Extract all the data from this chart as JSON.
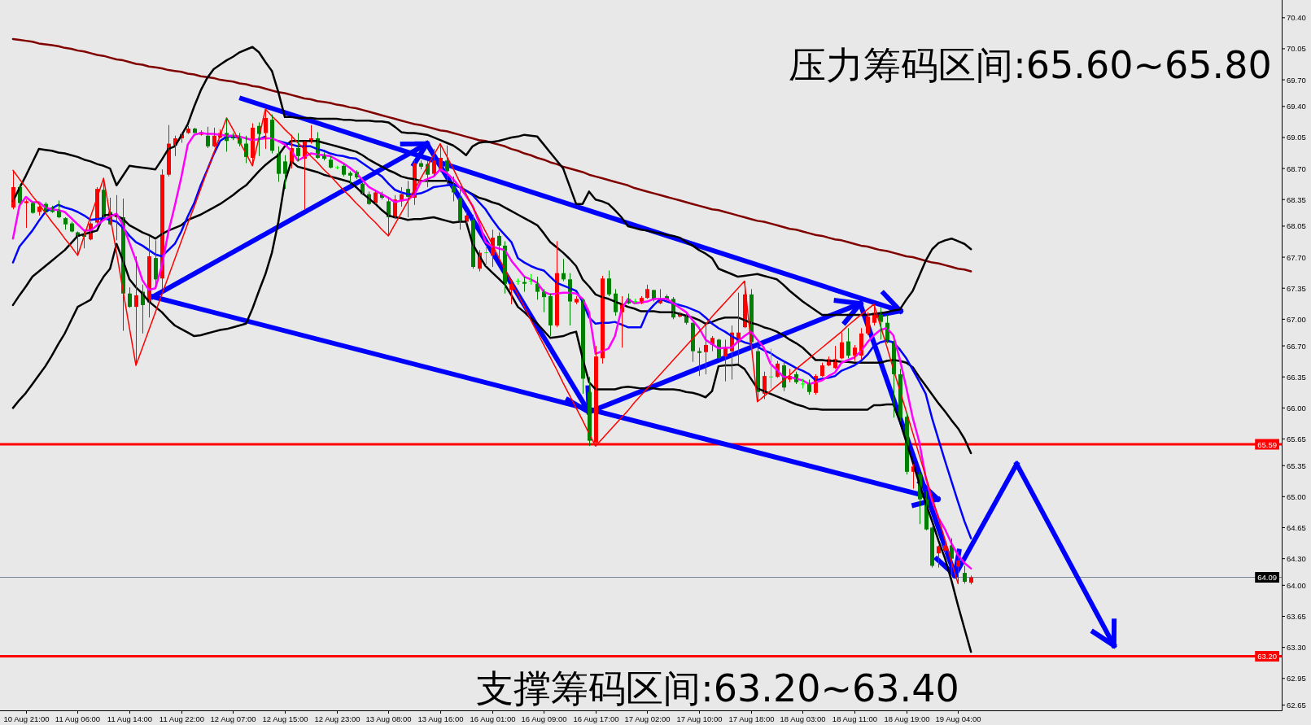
{
  "chart_data": {
    "type": "candlestick",
    "categories": [
      null,
      null,
      "10 Aug 21:00",
      null,
      null,
      null,
      null,
      null,
      null,
      null,
      "11 Aug 06:00",
      null,
      null,
      null,
      null,
      null,
      null,
      null,
      "11 Aug 14:00",
      null,
      null,
      null,
      null,
      null,
      null,
      null,
      "11 Aug 22:00",
      null,
      null,
      null,
      null,
      null,
      null,
      null,
      "12 Aug 07:00",
      null,
      null,
      null,
      null,
      null,
      null,
      null,
      "12 Aug 15:00",
      null,
      null,
      null,
      null,
      null,
      null,
      null,
      "12 Aug 23:00",
      null,
      null,
      null,
      null,
      null,
      null,
      null,
      "13 Aug 08:00",
      null,
      null,
      null,
      null,
      null,
      null,
      null,
      "13 Aug 16:00",
      null,
      null,
      null,
      null,
      null,
      null,
      null,
      "16 Aug 01:00",
      null,
      null,
      null,
      null,
      null,
      null,
      null,
      "16 Aug 09:00",
      null,
      null,
      null,
      null,
      null,
      null,
      null,
      "16 Aug 17:00",
      null,
      null,
      null,
      null,
      null,
      null,
      null,
      "17 Aug 02:00",
      null,
      null,
      null,
      null,
      null,
      null,
      null,
      "17 Aug 10:00",
      null,
      null,
      null,
      null,
      null,
      null,
      null,
      "17 Aug 18:00",
      null,
      null,
      null,
      null,
      null,
      null,
      null,
      "18 Aug 03:00",
      null,
      null,
      null,
      null,
      null,
      null,
      null,
      "18 Aug 11:00",
      null,
      null,
      null,
      null,
      null,
      null,
      null,
      "18 Aug 19:00",
      null,
      null,
      null,
      null,
      null,
      null,
      null,
      "19 Aug 04:00",
      null,
      null
    ],
    "ohlc": [
      [
        68.26,
        68.68,
        68.24,
        68.49
      ],
      [
        68.49,
        68.52,
        68.3,
        68.31
      ],
      [
        68.31,
        68.35,
        68.03,
        68.33
      ],
      [
        68.31,
        68.32,
        68.19,
        68.2
      ],
      [
        68.21,
        68.28,
        68.17,
        68.27
      ],
      [
        68.3,
        68.32,
        68.2,
        68.21
      ],
      [
        68.26,
        68.28,
        68.2,
        68.21
      ],
      [
        68.23,
        68.34,
        68.14,
        68.15
      ],
      [
        68.14,
        68.15,
        68.01,
        68.07
      ],
      [
        68.08,
        68.1,
        67.98,
        67.99
      ],
      [
        67.98,
        67.99,
        67.72,
        67.93
      ],
      [
        67.95,
        68.0,
        67.8,
        67.93
      ],
      [
        67.9,
        68.1,
        67.89,
        68.08
      ],
      [
        68.09,
        68.49,
        68.08,
        68.47
      ],
      [
        68.46,
        68.59,
        68.14,
        68.15
      ],
      [
        68.21,
        68.37,
        68.06,
        68.07
      ],
      [
        68.15,
        68.4,
        67.89,
        68.16
      ],
      [
        68.15,
        68.36,
        66.87,
        67.29
      ],
      [
        67.29,
        67.36,
        67.13,
        67.14
      ],
      [
        67.14,
        67.71,
        66.48,
        67.27
      ],
      [
        67.31,
        67.39,
        66.84,
        67.16
      ],
      [
        67.19,
        67.94,
        67.02,
        67.71
      ],
      [
        67.69,
        67.89,
        67.36,
        67.45
      ],
      [
        67.46,
        68.69,
        67.34,
        68.63
      ],
      [
        68.63,
        69.19,
        68.61,
        68.98
      ],
      [
        68.96,
        69.07,
        68.84,
        69.04
      ],
      [
        69.04,
        69.11,
        68.99,
        69.09
      ],
      [
        69.1,
        69.18,
        69.09,
        69.15
      ],
      [
        69.15,
        69.16,
        69.1,
        69.1
      ],
      [
        69.08,
        69.13,
        69.07,
        69.11
      ],
      [
        69.07,
        69.17,
        68.93,
        68.95
      ],
      [
        68.95,
        69.16,
        68.94,
        69.07
      ],
      [
        69.05,
        69.14,
        69.04,
        69.1
      ],
      [
        69.1,
        69.27,
        68.89,
        69.01
      ],
      [
        69.07,
        69.1,
        69.02,
        69.04
      ],
      [
        69.04,
        69.1,
        68.95,
        68.98
      ],
      [
        68.98,
        69.07,
        68.76,
        68.83
      ],
      [
        68.82,
        69.21,
        68.73,
        69.16
      ],
      [
        69.18,
        69.22,
        68.84,
        69.09
      ],
      [
        69.1,
        69.37,
        68.92,
        69.27
      ],
      [
        69.25,
        69.31,
        68.87,
        68.9
      ],
      [
        68.87,
        68.95,
        68.55,
        68.64
      ],
      [
        68.78,
        68.85,
        68.47,
        68.64
      ],
      [
        68.77,
        69.08,
        68.7,
        68.93
      ],
      [
        68.93,
        69.1,
        68.78,
        68.84
      ],
      [
        68.81,
        69.01,
        68.24,
        69.0
      ],
      [
        69.0,
        69.19,
        68.98,
        69.04
      ],
      [
        69.04,
        69.11,
        68.81,
        68.82
      ],
      [
        68.85,
        68.88,
        68.79,
        68.81
      ],
      [
        68.8,
        68.84,
        68.7,
        68.71
      ],
      [
        68.71,
        68.73,
        68.69,
        68.71
      ],
      [
        68.73,
        68.75,
        68.61,
        68.63
      ],
      [
        68.65,
        68.67,
        68.53,
        68.62
      ],
      [
        68.66,
        68.68,
        68.58,
        68.6
      ],
      [
        68.53,
        68.56,
        68.4,
        68.41
      ],
      [
        68.41,
        68.44,
        68.29,
        68.3
      ],
      [
        68.31,
        68.46,
        68.3,
        68.43
      ],
      [
        68.41,
        68.44,
        68.35,
        68.37
      ],
      [
        68.33,
        68.38,
        67.94,
        68.15
      ],
      [
        68.14,
        68.4,
        68.13,
        68.35
      ],
      [
        68.33,
        68.49,
        68.27,
        68.41
      ],
      [
        68.47,
        68.56,
        68.15,
        68.38
      ],
      [
        68.37,
        68.79,
        68.29,
        68.76
      ],
      [
        68.76,
        68.79,
        68.69,
        68.72
      ],
      [
        68.75,
        68.79,
        68.49,
        68.63
      ],
      [
        68.64,
        68.92,
        68.61,
        68.79
      ],
      [
        68.67,
        68.98,
        68.66,
        68.82
      ],
      [
        68.79,
        68.96,
        68.52,
        68.67
      ],
      [
        68.52,
        68.61,
        68.33,
        68.43
      ],
      [
        68.37,
        68.46,
        68.01,
        68.11
      ],
      [
        68.1,
        68.21,
        68.08,
        68.17
      ],
      [
        68.12,
        68.18,
        67.57,
        67.59
      ],
      [
        67.57,
        67.78,
        67.54,
        67.75
      ],
      [
        67.75,
        67.83,
        67.6,
        67.75
      ],
      [
        67.72,
        68.01,
        67.59,
        67.92
      ],
      [
        67.94,
        67.98,
        67.69,
        67.83
      ],
      [
        67.83,
        67.88,
        67.29,
        67.4
      ],
      [
        67.33,
        67.45,
        67.17,
        67.4
      ],
      [
        67.43,
        67.46,
        67.39,
        67.43
      ],
      [
        67.42,
        67.48,
        67.31,
        67.4
      ],
      [
        67.43,
        67.51,
        67.39,
        67.43
      ],
      [
        67.4,
        67.48,
        67.22,
        67.31
      ],
      [
        67.31,
        67.34,
        67.08,
        67.25
      ],
      [
        67.26,
        67.29,
        66.81,
        66.93
      ],
      [
        66.93,
        67.88,
        66.91,
        67.52
      ],
      [
        67.52,
        67.68,
        67.43,
        67.45
      ],
      [
        67.45,
        67.52,
        66.93,
        67.2
      ],
      [
        67.19,
        67.26,
        67.17,
        67.23
      ],
      [
        67.22,
        67.23,
        66.16,
        66.33
      ],
      [
        66.18,
        66.35,
        65.57,
        65.63
      ],
      [
        65.61,
        66.7,
        65.57,
        66.58
      ],
      [
        66.56,
        67.49,
        66.5,
        67.46
      ],
      [
        67.46,
        67.55,
        67.26,
        67.28
      ],
      [
        67.29,
        67.34,
        67.04,
        67.08
      ],
      [
        67.08,
        67.26,
        66.68,
        67.17
      ],
      [
        67.23,
        67.29,
        67.17,
        67.18
      ],
      [
        67.2,
        67.23,
        67.18,
        67.2
      ],
      [
        67.18,
        67.26,
        67.17,
        67.24
      ],
      [
        67.24,
        67.39,
        67.23,
        67.34
      ],
      [
        67.33,
        67.33,
        67.2,
        67.22
      ],
      [
        67.18,
        67.34,
        67.17,
        67.23
      ],
      [
        67.26,
        67.28,
        67.19,
        67.23
      ],
      [
        67.23,
        67.25,
        67.0,
        67.02
      ],
      [
        67.03,
        67.08,
        67.02,
        67.07
      ],
      [
        67.03,
        67.06,
        66.94,
        66.96
      ],
      [
        66.96,
        66.96,
        66.52,
        66.64
      ],
      [
        66.64,
        66.68,
        66.36,
        66.62
      ],
      [
        66.63,
        66.96,
        66.38,
        66.71
      ],
      [
        66.71,
        66.81,
        66.64,
        66.79
      ],
      [
        66.77,
        66.78,
        66.55,
        66.56
      ],
      [
        66.58,
        66.77,
        66.3,
        66.68
      ],
      [
        66.64,
        66.93,
        66.32,
        66.85
      ],
      [
        66.74,
        67.3,
        66.5,
        66.85
      ],
      [
        66.91,
        67.43,
        66.9,
        67.28
      ],
      [
        67.28,
        67.34,
        66.71,
        66.74
      ],
      [
        66.64,
        66.71,
        66.07,
        66.18
      ],
      [
        66.16,
        66.41,
        66.1,
        66.36
      ],
      [
        66.35,
        66.67,
        66.22,
        66.35
      ],
      [
        66.35,
        66.53,
        66.34,
        66.5
      ],
      [
        66.48,
        66.53,
        66.19,
        66.23
      ],
      [
        66.32,
        66.44,
        66.29,
        66.36
      ],
      [
        66.38,
        66.41,
        66.27,
        66.29
      ],
      [
        66.27,
        66.33,
        66.22,
        66.27
      ],
      [
        66.27,
        66.32,
        66.15,
        66.18
      ],
      [
        66.17,
        66.38,
        66.15,
        66.36
      ],
      [
        66.36,
        66.51,
        66.35,
        66.48
      ],
      [
        66.48,
        66.58,
        66.47,
        66.55
      ],
      [
        66.45,
        66.7,
        66.44,
        66.55
      ],
      [
        66.56,
        66.85,
        66.55,
        66.74
      ],
      [
        66.75,
        66.9,
        66.56,
        66.59
      ],
      [
        66.59,
        66.71,
        66.53,
        66.68
      ],
      [
        66.59,
        66.9,
        66.55,
        66.84
      ],
      [
        66.84,
        67.08,
        66.82,
        67.03
      ],
      [
        66.96,
        67.17,
        66.93,
        67.07
      ],
      [
        67.05,
        67.13,
        66.77,
        66.97
      ],
      [
        66.96,
        67.05,
        66.73,
        66.74
      ],
      [
        66.74,
        66.76,
        65.89,
        66.38
      ],
      [
        66.38,
        66.44,
        65.85,
        65.89
      ],
      [
        65.9,
        65.95,
        65.25,
        65.28
      ],
      [
        65.28,
        65.37,
        65.09,
        65.34
      ],
      [
        65.25,
        65.28,
        64.69,
        64.97
      ],
      [
        64.97,
        65.06,
        64.62,
        64.63
      ],
      [
        64.65,
        64.66,
        64.2,
        64.22
      ],
      [
        64.36,
        64.45,
        64.2,
        64.44
      ],
      [
        64.39,
        64.48,
        64.36,
        64.45
      ],
      [
        64.45,
        64.53,
        64.11,
        64.3
      ],
      [
        64.21,
        64.39,
        64.02,
        64.28
      ],
      [
        64.14,
        64.22,
        64.02,
        64.04
      ],
      [
        64.03,
        64.11,
        64.01,
        64.09
      ]
    ],
    "colors": [
      "#ff0000",
      "#008000",
      "#ff0000",
      "#008000",
      "#ff0000",
      "#008000",
      "#008000",
      "#008000",
      "#008000",
      "#008000",
      "#008000",
      "#008000",
      "#ff0000",
      "#ff0000",
      "#008000",
      "#008000",
      "#ff0000",
      "#008000",
      "#008000",
      "#ff0000",
      "#008000",
      "#ff0000",
      "#008000",
      "#ff0000",
      "#ff0000",
      "#ff0000",
      "#ff0000",
      "#ff0000",
      "#008000",
      "#ff0000",
      "#008000",
      "#ff0000",
      "#ff0000",
      "#008000",
      "#008000",
      "#008000",
      "#008000",
      "#ff0000",
      "#008000",
      "#ff0000",
      "#008000",
      "#008000",
      "#008000",
      "#ff0000",
      "#008000",
      "#ff0000",
      "#ff0000",
      "#008000",
      "#008000",
      "#008000",
      "#00ff00",
      "#008000",
      "#008000",
      "#008000",
      "#008000",
      "#008000",
      "#ff0000",
      "#008000",
      "#008000",
      "#ff0000",
      "#ff0000",
      "#008000",
      "#ff0000",
      "#008000",
      "#008000",
      "#ff0000",
      "#ff0000",
      "#008000",
      "#008000",
      "#008000",
      "#ff0000",
      "#008000",
      "#ff0000",
      "#00ff00",
      "#ff0000",
      "#008000",
      "#008000",
      "#ff0000",
      "#00ff00",
      "#008000",
      "#00ff00",
      "#008000",
      "#008000",
      "#008000",
      "#ff0000",
      "#008000",
      "#008000",
      "#ff0000",
      "#008000",
      "#008000",
      "#ff0000",
      "#ff0000",
      "#008000",
      "#008000",
      "#ff0000",
      "#008000",
      "#00ff00",
      "#ff0000",
      "#ff0000",
      "#008000",
      "#ff0000",
      "#008000",
      "#008000",
      "#ff0000",
      "#008000",
      "#008000",
      "#008000",
      "#ff0000",
      "#ff0000",
      "#008000",
      "#ff0000",
      "#ff0000",
      "#ff0000",
      "#ff0000",
      "#008000",
      "#008000",
      "#ff0000",
      "#00ff00",
      "#ff0000",
      "#008000",
      "#ff0000",
      "#008000",
      "#00ff00",
      "#008000",
      "#ff0000",
      "#ff0000",
      "#ff0000",
      "#ff0000",
      "#ff0000",
      "#008000",
      "#ff0000",
      "#ff0000",
      "#ff0000",
      "#ff0000",
      "#008000",
      "#008000",
      "#008000",
      "#008000",
      "#008000",
      "#ff0000",
      "#008000",
      "#008000",
      "#008000",
      "#ff0000",
      "#ff0000",
      "#008000",
      "#ff0000",
      "#008000",
      "#ff0000"
    ],
    "series": [
      {
        "type": "line",
        "color": "#800000",
        "values": [
          70.16,
          70.15,
          70.14,
          70.13,
          70.11,
          70.1,
          70.09,
          70.08,
          70.06,
          70.05,
          70.03,
          70.02,
          70.0,
          69.98,
          69.97,
          69.95,
          69.93,
          69.92,
          69.9,
          69.88,
          69.87,
          69.85,
          69.84,
          69.83,
          69.81,
          69.8,
          69.79,
          69.77,
          69.76,
          69.74,
          69.73,
          69.72,
          69.7,
          69.69,
          69.68,
          69.66,
          69.65,
          69.63,
          69.62,
          69.6,
          69.58,
          69.56,
          69.55,
          69.53,
          69.51,
          69.49,
          69.48,
          69.46,
          69.45,
          69.44,
          69.42,
          69.41,
          69.39,
          69.38,
          69.36,
          69.34,
          69.32,
          69.3,
          69.28,
          69.26,
          69.24,
          69.22,
          69.2,
          69.19,
          69.17,
          69.15,
          69.13,
          69.12,
          69.1,
          69.08,
          69.06,
          69.04,
          69.02,
          69.01,
          68.99,
          68.97,
          68.95,
          68.92,
          68.9,
          68.87,
          68.85,
          68.82,
          68.8,
          68.77,
          68.75,
          68.72,
          68.7,
          68.68,
          68.66,
          68.63,
          68.61,
          68.59,
          68.57,
          68.55,
          68.53,
          68.51,
          68.48,
          68.46,
          68.44,
          68.42,
          68.4,
          68.38,
          68.36,
          68.34,
          68.32,
          68.3,
          68.28,
          68.26,
          68.24,
          68.23,
          68.21,
          68.19,
          68.17,
          68.15,
          68.13,
          68.11,
          68.1,
          68.08,
          68.06,
          68.04,
          68.02,
          68.01,
          67.99,
          67.97,
          67.95,
          67.94,
          67.92,
          67.9,
          67.89,
          67.87,
          67.85,
          67.83,
          67.82,
          67.8,
          67.78,
          67.77,
          67.75,
          67.73,
          67.71,
          67.7,
          67.68,
          67.66,
          67.64,
          67.63,
          67.61,
          67.59,
          67.57,
          67.56,
          67.54
        ]
      },
      {
        "type": "line",
        "color": "#000000",
        "values": [
          68.33,
          68.48,
          68.62,
          68.77,
          68.92,
          68.91,
          68.9,
          68.88,
          68.87,
          68.85,
          68.83,
          68.8,
          68.78,
          68.75,
          68.73,
          68.7,
          68.51,
          68.62,
          68.73,
          68.72,
          68.71,
          68.7,
          68.69,
          68.8,
          68.92,
          68.95,
          69.07,
          69.2,
          69.4,
          69.58,
          69.72,
          69.82,
          69.87,
          69.92,
          69.96,
          70.01,
          70.04,
          70.07,
          70.01,
          69.9,
          69.8,
          69.56,
          69.28,
          69.28,
          69.27,
          69.27,
          69.27,
          69.26,
          69.26,
          69.26,
          69.26,
          69.25,
          69.25,
          69.24,
          69.24,
          69.24,
          69.23,
          69.23,
          69.22,
          69.17,
          69.11,
          69.1,
          69.1,
          69.09,
          69.08,
          69.05,
          69.02,
          68.99,
          68.96,
          68.91,
          68.85,
          68.95,
          68.99,
          69.0,
          69.0,
          69.01,
          69.03,
          69.05,
          69.06,
          69.08,
          69.07,
          69.06,
          68.97,
          68.88,
          68.79,
          68.7,
          68.5,
          68.3,
          68.3,
          68.44,
          68.35,
          68.33,
          68.3,
          68.23,
          68.15,
          68.05,
          68.03,
          68.01,
          68.0,
          67.98,
          67.97,
          67.95,
          67.94,
          67.92,
          67.87,
          67.83,
          67.78,
          67.74,
          67.69,
          67.57,
          67.54,
          67.51,
          67.48,
          67.49,
          67.5,
          67.51,
          67.49,
          67.47,
          67.45,
          67.39,
          67.32,
          67.26,
          67.2,
          67.15,
          67.1,
          67.05,
          67.05,
          67.05,
          67.05,
          67.05,
          67.05,
          67.05,
          67.05,
          67.06,
          67.07,
          67.08,
          67.1,
          67.11,
          67.22,
          67.32,
          67.49,
          67.66,
          67.79,
          67.86,
          67.89,
          67.91,
          67.88,
          67.85,
          67.79
        ]
      },
      {
        "type": "line",
        "color": "#000000",
        "values": [
          67.16,
          67.27,
          67.37,
          67.48,
          67.54,
          67.6,
          67.66,
          67.72,
          67.78,
          67.86,
          67.94,
          67.96,
          67.98,
          68.0,
          68.17,
          68.18,
          68.17,
          68.13,
          68.06,
          68.02,
          67.98,
          67.95,
          67.91,
          67.96,
          68.0,
          68.03,
          68.06,
          68.12,
          68.15,
          68.18,
          68.22,
          68.26,
          68.3,
          68.35,
          68.4,
          68.46,
          68.51,
          68.59,
          68.67,
          68.74,
          68.8,
          68.85,
          68.95,
          69.01,
          69.01,
          69.01,
          69.01,
          69.01,
          68.99,
          68.97,
          68.95,
          68.93,
          68.91,
          68.89,
          68.85,
          68.8,
          68.76,
          68.72,
          68.68,
          68.65,
          68.61,
          68.59,
          68.58,
          68.56,
          68.56,
          68.56,
          68.56,
          68.56,
          68.53,
          68.49,
          68.45,
          68.41,
          68.37,
          68.35,
          68.32,
          68.3,
          68.26,
          68.22,
          68.18,
          68.14,
          68.1,
          68.06,
          67.97,
          67.87,
          67.81,
          67.75,
          67.68,
          67.6,
          67.45,
          67.37,
          67.28,
          67.25,
          67.23,
          67.2,
          67.17,
          67.14,
          67.12,
          67.09,
          67.09,
          67.09,
          67.08,
          67.08,
          67.08,
          67.06,
          67.04,
          67.02,
          66.99,
          66.95,
          66.97,
          67.0,
          67.02,
          67.02,
          67.02,
          66.99,
          66.96,
          66.94,
          66.91,
          66.89,
          66.86,
          66.82,
          66.77,
          66.73,
          66.68,
          66.61,
          66.54,
          66.54,
          66.53,
          66.53,
          66.52,
          66.52,
          66.51,
          66.51,
          66.51,
          66.51,
          66.51,
          66.53,
          66.54,
          66.53,
          66.51,
          66.46,
          66.35,
          66.25,
          66.15,
          66.05,
          65.96,
          65.86,
          65.77,
          65.65,
          65.49
        ]
      },
      {
        "type": "line",
        "color": "#000000",
        "values": [
          66.0,
          66.09,
          66.17,
          66.27,
          66.37,
          66.47,
          66.59,
          66.72,
          66.84,
          66.99,
          67.14,
          67.18,
          67.22,
          67.36,
          67.48,
          67.57,
          67.85,
          67.66,
          67.45,
          67.36,
          67.29,
          67.2,
          67.14,
          67.08,
          67.0,
          66.93,
          66.89,
          66.85,
          66.81,
          66.82,
          66.84,
          66.86,
          66.88,
          66.89,
          66.91,
          66.93,
          66.95,
          67.12,
          67.32,
          67.51,
          67.75,
          68.1,
          68.55,
          68.78,
          68.72,
          68.7,
          68.68,
          68.66,
          68.63,
          68.61,
          68.59,
          68.57,
          68.55,
          68.49,
          68.42,
          68.36,
          68.3,
          68.23,
          68.17,
          68.15,
          68.14,
          68.12,
          68.13,
          68.13,
          68.14,
          68.15,
          68.13,
          68.11,
          68.09,
          68.1,
          68.1,
          67.85,
          67.72,
          67.6,
          67.53,
          67.46,
          67.39,
          67.27,
          67.14,
          67.08,
          67.01,
          66.95,
          66.87,
          66.79,
          66.8,
          66.81,
          66.84,
          66.86,
          66.56,
          66.29,
          66.21,
          66.21,
          66.21,
          66.21,
          66.23,
          66.24,
          66.23,
          66.22,
          66.22,
          66.22,
          66.21,
          66.21,
          66.21,
          66.2,
          66.18,
          66.17,
          66.15,
          66.12,
          66.19,
          66.47,
          66.48,
          66.48,
          66.49,
          66.44,
          66.33,
          66.22,
          66.19,
          66.16,
          66.13,
          66.1,
          66.07,
          66.04,
          66.02,
          65.99,
          65.99,
          65.98,
          65.98,
          65.98,
          65.98,
          65.98,
          65.98,
          65.98,
          65.98,
          66.03,
          66.03,
          66.04,
          66.04,
          65.85,
          65.62,
          65.39,
          65.15,
          64.93,
          64.72,
          64.5,
          64.3,
          64.05,
          63.77,
          63.51,
          63.25
        ]
      },
      {
        "type": "line",
        "color": "#0000ff",
        "values": [
          67.64,
          67.82,
          67.91,
          68.0,
          68.11,
          68.21,
          68.25,
          68.29,
          68.26,
          68.24,
          68.21,
          68.17,
          68.12,
          68.13,
          68.14,
          68.12,
          68.1,
          68.03,
          67.94,
          67.87,
          67.83,
          67.78,
          67.73,
          67.71,
          67.78,
          67.85,
          67.99,
          68.16,
          68.31,
          68.51,
          68.68,
          68.86,
          69.01,
          69.06,
          69.06,
          69.05,
          null,
          null,
          69.03,
          69.06,
          null,
          69.01,
          68.99,
          68.97,
          68.95,
          68.95,
          68.95,
          68.92,
          68.9,
          68.87,
          68.85,
          68.84,
          68.82,
          68.81,
          68.76,
          68.71,
          68.66,
          68.61,
          68.53,
          68.46,
          68.43,
          68.41,
          68.41,
          68.42,
          68.45,
          68.49,
          68.5,
          68.51,
          68.52,
          68.49,
          68.45,
          68.4,
          68.32,
          68.24,
          68.13,
          68.03,
          67.95,
          67.87,
          67.69,
          67.64,
          67.6,
          67.57,
          67.55,
          67.48,
          67.41,
          67.38,
          67.35,
          67.32,
          67.2,
          67.02,
          66.95,
          66.96,
          66.96,
          66.97,
          66.94,
          66.91,
          66.91,
          66.91,
          67.08,
          67.16,
          67.23,
          67.2,
          67.18,
          67.16,
          67.14,
          67.11,
          67.08,
          67.02,
          66.95,
          66.9,
          66.86,
          66.81,
          66.77,
          66.74,
          66.72,
          66.69,
          66.65,
          66.62,
          66.57,
          66.53,
          66.49,
          66.45,
          66.42,
          66.38,
          66.31,
          66.33,
          66.34,
          66.36,
          66.42,
          66.45,
          66.48,
          66.53,
          66.6,
          66.7,
          66.74,
          66.76,
          66.74,
          66.66,
          66.56,
          66.43,
          66.3,
          66.16,
          65.88,
          65.64,
          65.4,
          65.17,
          64.94,
          64.72,
          64.53
        ]
      },
      {
        "type": "line",
        "color": "#ff00ff",
        "values": [
          67.91,
          68.28,
          68.38,
          68.32,
          68.32,
          68.26,
          68.24,
          68.23,
          68.21,
          68.14,
          68.07,
          68.0,
          68.0,
          68.06,
          68.12,
          68.16,
          68.19,
          68.06,
          67.86,
          67.66,
          67.44,
          67.33,
          67.35,
          67.6,
          67.98,
          68.28,
          68.6,
          68.97,
          69.08,
          69.1,
          69.09,
          69.09,
          69.08,
          69.07,
          69.07,
          69.06,
          69.04,
          69.02,
          69.03,
          69.04,
          69.04,
          69.01,
          68.97,
          68.9,
          68.79,
          68.83,
          68.87,
          68.86,
          68.85,
          68.84,
          68.8,
          68.76,
          68.71,
          68.65,
          68.57,
          68.49,
          68.45,
          68.41,
          68.37,
          68.32,
          68.34,
          68.35,
          68.4,
          68.55,
          68.58,
          68.61,
          68.69,
          68.65,
          68.58,
          68.49,
          68.39,
          68.28,
          68.09,
          67.87,
          67.82,
          67.8,
          67.78,
          67.66,
          67.57,
          67.48,
          67.45,
          67.41,
          67.31,
          67.28,
          67.29,
          67.3,
          67.3,
          67.29,
          67.23,
          67.08,
          66.61,
          66.64,
          66.67,
          66.81,
          67.11,
          67.23,
          67.18,
          67.19,
          67.2,
          67.23,
          67.23,
          67.23,
          67.18,
          67.13,
          67.08,
          66.99,
          66.9,
          66.77,
          66.72,
          66.67,
          66.68,
          66.68,
          66.75,
          66.81,
          66.86,
          66.77,
          66.68,
          66.5,
          66.43,
          66.35,
          66.35,
          66.33,
          66.31,
          66.27,
          66.29,
          66.31,
          66.36,
          66.4,
          66.51,
          66.54,
          66.57,
          66.64,
          66.74,
          66.82,
          66.88,
          66.9,
          66.82,
          66.55,
          66.23,
          65.89,
          65.62,
          65.22,
          64.95,
          64.76,
          64.63,
          64.47,
          64.34,
          64.25,
          64.19
        ]
      },
      {
        "type": "line",
        "color": "#ff0000",
        "values": [
          68.68,
          68.58,
          68.49,
          68.39,
          68.3,
          68.2,
          68.1,
          68.01,
          67.91,
          67.82,
          67.72,
          67.94,
          68.16,
          68.37,
          68.59,
          68.17,
          67.75,
          67.32,
          66.9,
          66.48,
          66.68,
          66.88,
          67.08,
          67.28,
          67.48,
          67.68,
          67.88,
          68.08,
          68.27,
          68.47,
          68.67,
          68.87,
          69.07,
          69.27,
          69.14,
          69.0,
          68.87,
          68.73,
          69.05,
          69.37,
          69.29,
          69.22,
          69.14,
          69.07,
          68.99,
          68.92,
          68.84,
          68.77,
          68.69,
          68.62,
          68.54,
          68.46,
          68.39,
          68.31,
          68.24,
          68.16,
          68.09,
          68.01,
          67.94,
          68.07,
          68.2,
          68.33,
          68.46,
          68.59,
          68.72,
          68.85,
          68.98,
          68.84,
          68.7,
          68.55,
          68.41,
          68.27,
          68.13,
          67.99,
          67.85,
          67.7,
          67.56,
          67.42,
          67.28,
          67.14,
          66.99,
          66.85,
          66.71,
          66.57,
          66.43,
          66.28,
          66.14,
          66.0,
          65.86,
          65.71,
          65.57,
          65.65,
          65.73,
          65.81,
          65.89,
          65.97,
          66.06,
          66.14,
          66.22,
          66.3,
          66.38,
          66.46,
          66.54,
          66.62,
          66.7,
          66.78,
          66.86,
          66.94,
          67.03,
          67.11,
          67.19,
          67.27,
          67.35,
          67.43,
          66.75,
          66.07,
          66.13,
          66.19,
          66.25,
          66.31,
          66.37,
          66.44,
          66.5,
          66.56,
          66.62,
          66.68,
          66.74,
          66.8,
          66.86,
          66.93,
          66.99,
          67.05,
          67.11,
          67.17,
          66.93,
          66.69,
          66.44,
          66.2,
          65.96,
          65.72,
          65.47,
          65.23,
          64.99,
          64.75,
          64.51,
          64.26,
          64.02,
          null,
          null
        ]
      }
    ],
    "ylim": [
      62.59,
      70.6
    ],
    "yticks": [
      {
        "value": 70.4,
        "label": "70.40"
      },
      {
        "value": 70.05,
        "label": "70.05"
      },
      {
        "value": 69.7,
        "label": "69.70"
      },
      {
        "value": 69.4,
        "label": "69.40"
      },
      {
        "value": 69.05,
        "label": "69.05"
      },
      {
        "value": 68.7,
        "label": "68.70"
      },
      {
        "value": 68.35,
        "label": "68.35"
      },
      {
        "value": 68.05,
        "label": "68.05"
      },
      {
        "value": 67.7,
        "label": "67.70"
      },
      {
        "value": 67.35,
        "label": "67.35"
      },
      {
        "value": 67,
        "label": "67.00"
      },
      {
        "value": 66.7,
        "label": "66.70"
      },
      {
        "value": 66.35,
        "label": "66.35"
      },
      {
        "value": 66,
        "label": "66.00"
      },
      {
        "value": 65.65,
        "label": "65.65"
      },
      {
        "value": 65.35,
        "label": "65.35"
      },
      {
        "value": 65,
        "label": "65.00"
      },
      {
        "value": 64.65,
        "label": "64.65"
      },
      {
        "value": 64.3,
        "label": "64.30"
      },
      {
        "value": 64,
        "label": "64.00"
      },
      {
        "value": 63.65,
        "label": "63.65"
      },
      {
        "value": 63.3,
        "label": "63.30"
      },
      {
        "value": 62.95,
        "label": "62.95"
      },
      {
        "value": 62.65,
        "label": "62.65"
      }
    ],
    "ref_lines": [
      {
        "axis": "y",
        "value": 65.59,
        "label": "65.59",
        "color": "#ff0000"
      },
      {
        "axis": "y",
        "value": 63.2,
        "label": "63.20",
        "color": "#ff0000"
      },
      {
        "axis": "y",
        "value": 64.09,
        "label": "64.09",
        "color": "#778899"
      }
    ],
    "annotations": [
      "压力筹码区间:65.60~65.80",
      "支撑筹码区间:63.20~63.40"
    ]
  }
}
